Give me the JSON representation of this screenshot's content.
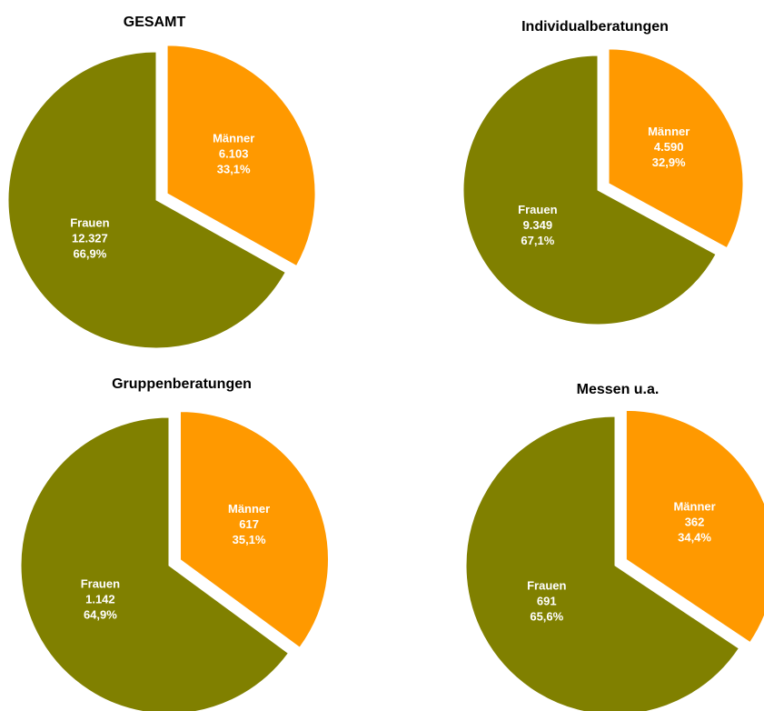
{
  "chart_data": [
    {
      "type": "pie",
      "title": "GESAMT",
      "categories": [
        "Männer",
        "Frauen"
      ],
      "values": [
        6103,
        12327
      ],
      "value_labels": [
        "6.103",
        "12.327"
      ],
      "percentages": [
        33.1,
        66.9
      ],
      "percentage_labels": [
        "33,1%",
        "66,9%"
      ],
      "colors": [
        "#ff9900",
        "#808000"
      ]
    },
    {
      "type": "pie",
      "title": "Individualberatungen",
      "categories": [
        "Männer",
        "Frauen"
      ],
      "values": [
        4590,
        9349
      ],
      "value_labels": [
        "4.590",
        "9.349"
      ],
      "percentages": [
        32.9,
        67.1
      ],
      "percentage_labels": [
        "32,9%",
        "67,1%"
      ],
      "colors": [
        "#ff9900",
        "#808000"
      ]
    },
    {
      "type": "pie",
      "title": "Gruppenberatungen",
      "categories": [
        "Männer",
        "Frauen"
      ],
      "values": [
        617,
        1142
      ],
      "value_labels": [
        "617",
        "1.142"
      ],
      "percentages": [
        35.1,
        64.9
      ],
      "percentage_labels": [
        "35,1%",
        "64,9%"
      ],
      "colors": [
        "#ff9900",
        "#808000"
      ]
    },
    {
      "type": "pie",
      "title": "Messen u.a.",
      "categories": [
        "Männer",
        "Frauen"
      ],
      "values": [
        362,
        691
      ],
      "value_labels": [
        "362",
        "691"
      ],
      "percentages": [
        34.4,
        65.6
      ],
      "percentage_labels": [
        "34,4%",
        "65,6%"
      ],
      "colors": [
        "#ff9900",
        "#808000"
      ]
    }
  ]
}
